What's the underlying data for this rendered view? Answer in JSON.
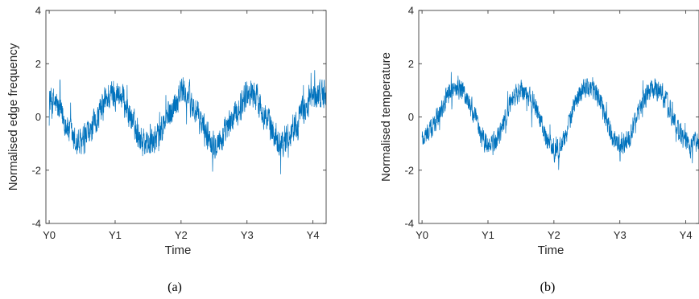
{
  "chart_data": [
    {
      "type": "line",
      "panel_caption": "(a)",
      "xlabel": "Time",
      "ylabel": "Normalised edge frequency",
      "x_ticks": [
        "Y0",
        "Y1",
        "Y2",
        "Y3",
        "Y4"
      ],
      "y_ticks": [
        "-4",
        "-2",
        "0",
        "2",
        "4"
      ],
      "xlim": [
        -0.05,
        4.2
      ],
      "ylim": [
        -4,
        4
      ],
      "grid": false,
      "series_color": "#0072BD",
      "series": [
        {
          "name": "",
          "x": [
            0.0,
            0.1,
            0.2,
            0.3,
            0.4,
            0.5,
            0.6,
            0.7,
            0.8,
            0.9,
            1.0,
            1.1,
            1.2,
            1.3,
            1.4,
            1.5,
            1.6,
            1.7,
            1.8,
            1.9,
            2.0,
            2.1,
            2.2,
            2.3,
            2.4,
            2.5,
            2.6,
            2.7,
            2.8,
            2.9,
            3.0,
            3.1,
            3.2,
            3.3,
            3.4,
            3.5,
            3.6,
            3.7,
            3.8,
            3.9,
            4.0,
            4.1,
            4.2
          ],
          "values": [
            0.7,
            0.5,
            0.0,
            -0.5,
            -1.0,
            -1.0,
            -0.7,
            -0.2,
            0.3,
            0.8,
            0.9,
            0.8,
            0.2,
            -0.4,
            -0.8,
            -1.0,
            -0.9,
            -0.5,
            0.0,
            0.5,
            1.0,
            0.8,
            0.3,
            -0.2,
            -0.7,
            -0.9,
            -0.9,
            -0.5,
            0.0,
            0.4,
            0.9,
            0.9,
            0.5,
            -0.1,
            -0.6,
            -0.9,
            -0.8,
            -0.4,
            0.0,
            0.4,
            0.7,
            0.9,
            0.8
          ],
          "noise_band": 0.75
        }
      ]
    },
    {
      "type": "line",
      "panel_caption": "(b)",
      "xlabel": "Time",
      "ylabel": "Normalised temperature",
      "x_ticks": [
        "Y0",
        "Y1",
        "Y2",
        "Y3",
        "Y4"
      ],
      "y_ticks": [
        "-4",
        "-2",
        "0",
        "2",
        "4"
      ],
      "xlim": [
        -0.05,
        4.2
      ],
      "ylim": [
        -4,
        4
      ],
      "grid": false,
      "series_color": "#0072BD",
      "series": [
        {
          "name": "",
          "x": [
            0.0,
            0.1,
            0.2,
            0.3,
            0.4,
            0.5,
            0.6,
            0.7,
            0.8,
            0.9,
            1.0,
            1.1,
            1.2,
            1.3,
            1.4,
            1.5,
            1.6,
            1.7,
            1.8,
            1.9,
            2.0,
            2.1,
            2.2,
            2.3,
            2.4,
            2.5,
            2.6,
            2.7,
            2.8,
            2.9,
            3.0,
            3.1,
            3.2,
            3.3,
            3.4,
            3.5,
            3.6,
            3.7,
            3.8,
            3.9,
            4.0,
            4.1,
            4.2
          ],
          "values": [
            -0.8,
            -0.6,
            -0.2,
            0.4,
            0.8,
            1.1,
            1.0,
            0.6,
            0.0,
            -0.7,
            -1.1,
            -1.0,
            -0.5,
            0.2,
            0.7,
            1.0,
            0.9,
            0.5,
            -0.2,
            -0.9,
            -1.2,
            -1.1,
            -0.5,
            0.3,
            0.9,
            1.2,
            1.1,
            0.6,
            -0.1,
            -0.8,
            -1.2,
            -1.0,
            -0.4,
            0.3,
            0.8,
            1.1,
            1.0,
            0.6,
            0.0,
            -0.6,
            -1.0,
            -1.1,
            -0.9
          ],
          "noise_band": 0.55
        }
      ]
    }
  ]
}
